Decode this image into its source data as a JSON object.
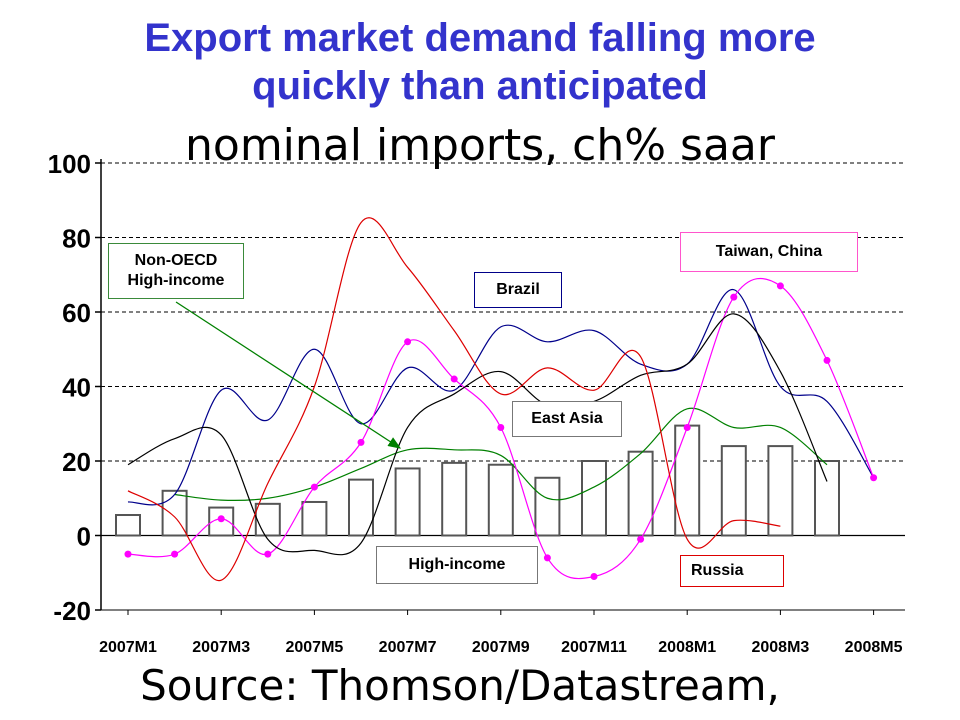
{
  "slide": {
    "title_line1": "Export market demand falling more",
    "title_line2": "quickly than anticipated",
    "subtitle": "nominal imports,  ch% saar",
    "source": "Source: Thomson/Datastream,"
  },
  "colors": {
    "title": "#3333cc",
    "bars": "#ffffff",
    "bar_stroke": "#555555",
    "non_oecd": "#008000",
    "brazil": "#00008b",
    "taiwan": "#ff00ff",
    "east_asia": "#000000",
    "russia": "#dd0000",
    "callout_green": "#3a8a3a",
    "callout_blue": "#000088",
    "callout_pink": "#ff55cc",
    "callout_gray": "#777777",
    "callout_red": "#dd0000"
  },
  "chart_data": {
    "type": "bar+line",
    "ylim": [
      -20,
      100
    ],
    "yticks": [
      "100",
      "80",
      "60",
      "40",
      "20",
      "0",
      "-20"
    ],
    "ytick_values": [
      100,
      80,
      60,
      40,
      20,
      0,
      -20
    ],
    "xtick_labels": [
      "2007M1",
      "2007M3",
      "2007M5",
      "2007M7",
      "2007M9",
      "2007M11",
      "2008M1",
      "2008M3",
      "2008M5"
    ],
    "grid": "horizontal-dashed",
    "periods": 17,
    "series": [
      {
        "key": "high_income",
        "type": "bar",
        "label": "High-income",
        "values": [
          5.5,
          12,
          7.5,
          8.5,
          9,
          15,
          18,
          19.5,
          19,
          15.5,
          20,
          22.5,
          29.5,
          24,
          24,
          20,
          null
        ]
      },
      {
        "key": "non_oecd",
        "type": "line",
        "label": "Non-OECD High-income",
        "values": [
          null,
          11,
          9.5,
          10,
          13,
          18,
          23,
          23,
          21.5,
          10,
          13,
          22,
          34,
          29,
          29,
          19,
          null
        ]
      },
      {
        "key": "brazil",
        "type": "line",
        "label": "Brazil",
        "values": [
          9,
          11,
          39,
          31,
          50,
          30,
          45,
          39,
          56,
          52,
          55,
          46,
          46,
          66,
          40,
          36,
          15.5
        ]
      },
      {
        "key": "taiwan",
        "type": "line",
        "label": "Taiwan, China",
        "markers": true,
        "values": [
          -5,
          -5,
          4.5,
          -5,
          13,
          25,
          52,
          42,
          29,
          -6,
          -11,
          -1,
          29,
          64,
          67,
          47,
          15.5
        ]
      },
      {
        "key": "east_asia",
        "type": "line",
        "label": "East Asia",
        "values": [
          19,
          26,
          27,
          -1,
          -4,
          -2,
          29,
          38,
          44,
          35,
          36,
          43,
          46,
          59.5,
          44,
          14.5,
          null
        ]
      },
      {
        "key": "russia",
        "type": "line",
        "label": "Russia",
        "values": [
          12,
          5,
          -12,
          14,
          40,
          84,
          72,
          55,
          38,
          45,
          39,
          48,
          -1,
          4,
          2.5,
          null,
          null
        ]
      }
    ]
  },
  "callouts": {
    "non_oecd": "Non-OECD High-income",
    "brazil": "Brazil",
    "taiwan": "Taiwan, China",
    "east_asia": "East Asia",
    "high_income": "High-income",
    "russia": "Russia"
  }
}
